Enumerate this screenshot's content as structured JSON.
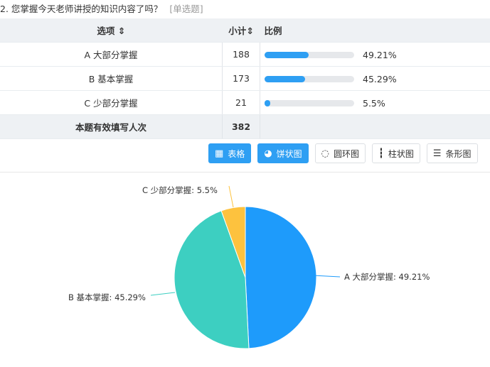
{
  "question": {
    "title": "2. 您掌握今天老师讲授的知识内容了吗？",
    "type": "[单选题]"
  },
  "table": {
    "headers": {
      "option": "选项 ⇕",
      "count": "小计⇕",
      "ratio": "比例"
    },
    "rows": [
      {
        "option": "A 大部分掌握",
        "count": "188",
        "percent": "49.21%",
        "fraction": 0.4921
      },
      {
        "option": "B 基本掌握",
        "count": "173",
        "percent": "45.29%",
        "fraction": 0.4529
      },
      {
        "option": "C 少部分掌握",
        "count": "21",
        "percent": "5.5%",
        "fraction": 0.055
      }
    ],
    "total_label": "本题有效填写人次",
    "total": "382"
  },
  "buttons": [
    {
      "label": "表格",
      "icon": "table-icon",
      "active": true
    },
    {
      "label": "饼状图",
      "icon": "pie-icon",
      "active": true
    },
    {
      "label": "圆环图",
      "icon": "donut-icon",
      "active": false
    },
    {
      "label": "柱状图",
      "icon": "bar-chart-icon",
      "active": false
    },
    {
      "label": "条形图",
      "icon": "horizontal-bar-icon",
      "active": false
    }
  ],
  "chart_data": {
    "type": "pie",
    "categories": [
      "A 大部分掌握",
      "B 基本掌握",
      "C 少部分掌握"
    ],
    "values": [
      49.21,
      45.29,
      5.5
    ],
    "labels": [
      "A 大部分掌握: 49.21%",
      "B 基本掌握: 45.29%",
      "C 少部分掌握: 5.5%"
    ],
    "colors": [
      "#1e9bfb",
      "#3dcfc1",
      "#fdc23e"
    ]
  }
}
